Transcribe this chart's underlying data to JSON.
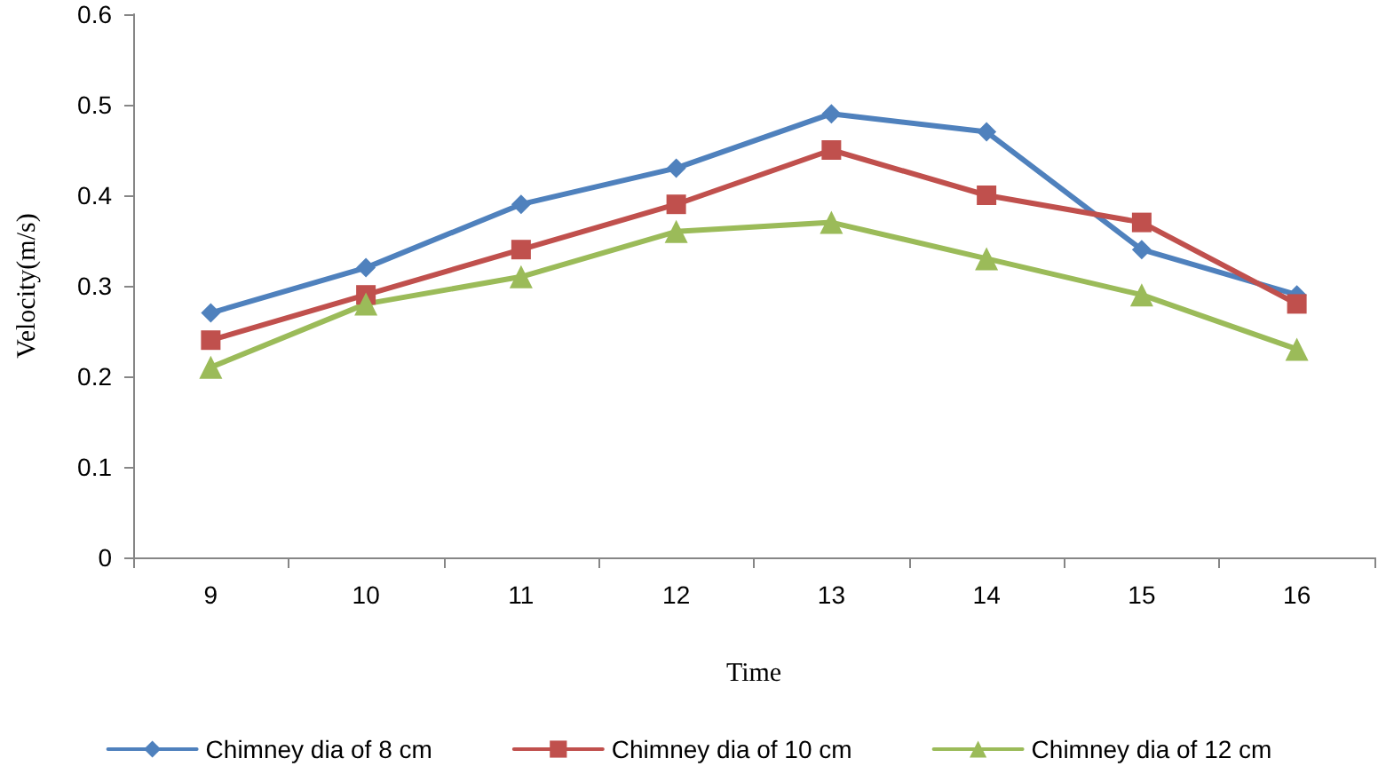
{
  "chart_data": {
    "type": "line",
    "xlabel": "Time",
    "ylabel": "Velocity(m/s)",
    "categories": [
      "9",
      "10",
      "11",
      "12",
      "13",
      "14",
      "15",
      "16"
    ],
    "series": [
      {
        "name": "Chimney dia of 8 cm",
        "color": "#4f81bd",
        "marker": "diamond",
        "values": [
          0.27,
          0.32,
          0.39,
          0.43,
          0.49,
          0.47,
          0.34,
          0.29
        ]
      },
      {
        "name": "Chimney dia of 10 cm",
        "color": "#c0504d",
        "marker": "square",
        "values": [
          0.24,
          0.29,
          0.34,
          0.39,
          0.45,
          0.4,
          0.37,
          0.28
        ]
      },
      {
        "name": "Chimney dia of 12 cm",
        "color": "#9bbb59",
        "marker": "triangle",
        "values": [
          0.21,
          0.28,
          0.31,
          0.36,
          0.37,
          0.33,
          0.29,
          0.23
        ]
      }
    ],
    "ylim": [
      0,
      0.6
    ],
    "yticks": [
      0,
      0.1,
      0.2,
      0.3,
      0.4,
      0.5,
      0.6
    ],
    "grid": false,
    "legend": "bottom",
    "line_style": "solid"
  }
}
